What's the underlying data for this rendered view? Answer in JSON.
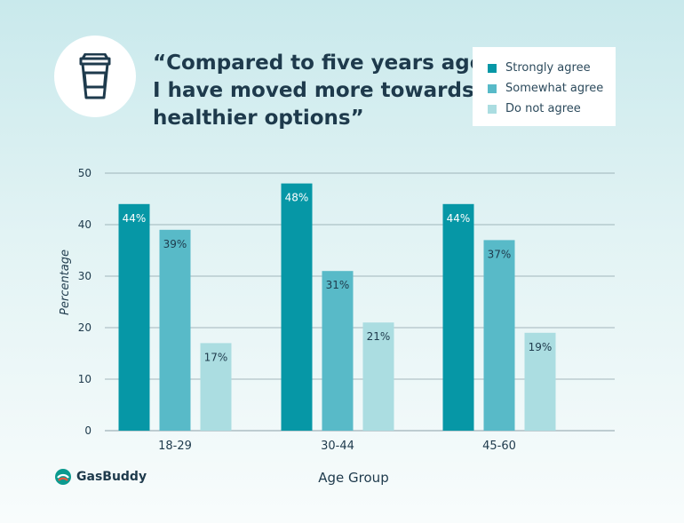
{
  "header": {
    "title_lines": [
      "“Compared to five years ago,",
      "I have moved more towards",
      "healthier options”"
    ],
    "icon": "coffee-cup-icon"
  },
  "brand": {
    "name": "GasBuddy",
    "icon": "gasbuddy-logo-icon"
  },
  "colors": {
    "strongly": "#0697a6",
    "somewhat": "#58bac8",
    "notagree": "#abdde1",
    "grid": "#8aa0a8",
    "text": "#1e3a4c"
  },
  "chart_data": {
    "type": "bar",
    "categories": [
      "18-29",
      "30-44",
      "45-60"
    ],
    "series": [
      {
        "name": "Strongly agree",
        "values": [
          44,
          48,
          44
        ],
        "labels": [
          "44%",
          "48%",
          "44%"
        ]
      },
      {
        "name": "Somewhat agree",
        "values": [
          39,
          31,
          37
        ],
        "labels": [
          "39%",
          "31%",
          "37%"
        ]
      },
      {
        "name": "Do not agree",
        "values": [
          17,
          21,
          19
        ],
        "labels": [
          "17%",
          "21%",
          "19%"
        ]
      }
    ],
    "xlabel": "Age Group",
    "ylabel": "Percentage",
    "ylim": [
      0,
      50
    ],
    "yticks": [
      "0",
      "10",
      "20",
      "30",
      "40",
      "50"
    ],
    "grid": true,
    "legend_position": "top-right"
  }
}
